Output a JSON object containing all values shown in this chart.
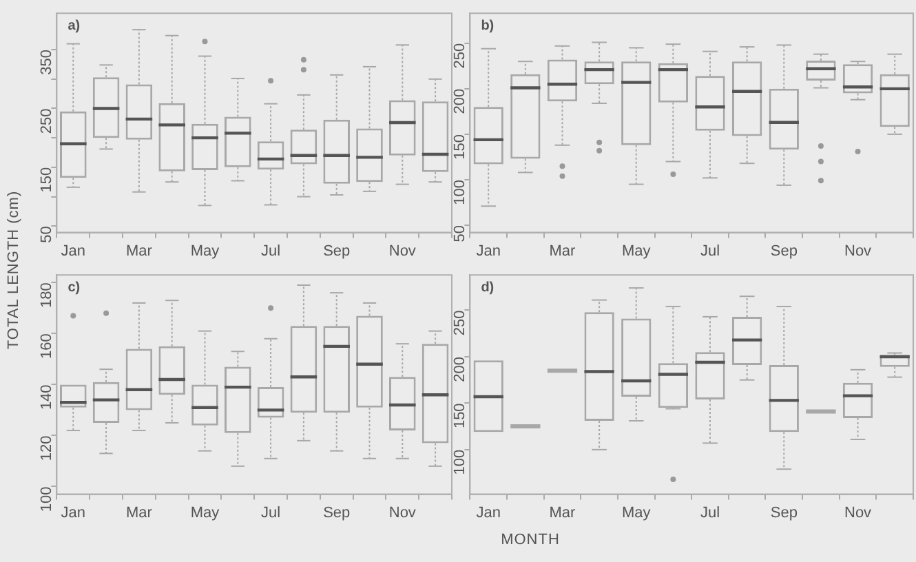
{
  "chart_data": [
    {
      "type": "box",
      "ylabel": "TOTAL LENGTH (cm)",
      "annotations": [
        "a)"
      ],
      "color": "#a8a8a8",
      "categories": [
        "Jan",
        null,
        "Mar",
        null,
        "May",
        null,
        "Jul",
        null,
        "Sep",
        null,
        "Nov",
        null
      ],
      "ylim": [
        39,
        412
      ],
      "yticks": [
        50,
        {
          "value": 100,
          "label": null
        },
        150,
        {
          "value": 200,
          "label": null
        },
        250,
        {
          "value": 300,
          "label": null
        },
        350
      ],
      "boxes": [
        {
          "low": 116,
          "q1": 132,
          "median": 190,
          "q3": 245,
          "high": 360
        },
        {
          "low": 181,
          "q1": 200,
          "median": 250,
          "q3": 303,
          "high": 324
        },
        {
          "low": 108,
          "q1": 197,
          "median": 232,
          "q3": 291,
          "high": 384
        },
        {
          "low": 125,
          "q1": 143,
          "median": 222,
          "q3": 259,
          "high": 374
        },
        {
          "low": 85,
          "q1": 145,
          "median": 200,
          "q3": 224,
          "high": 339,
          "outliers": [
            364
          ]
        },
        {
          "low": 127,
          "q1": 150,
          "median": 208,
          "q3": 236,
          "high": 301
        },
        {
          "low": 86,
          "q1": 146,
          "median": 164,
          "q3": 194,
          "high": 258,
          "outliers": [
            297
          ]
        },
        {
          "low": 100,
          "q1": 155,
          "median": 170,
          "q3": 214,
          "high": 273,
          "outliers": [
            316,
            333
          ]
        },
        {
          "low": 103,
          "q1": 122,
          "median": 170,
          "q3": 231,
          "high": 307
        },
        {
          "low": 109,
          "q1": 125,
          "median": 167,
          "q3": 216,
          "high": 321
        },
        {
          "low": 121,
          "q1": 170,
          "median": 226,
          "q3": 264,
          "high": 358
        },
        {
          "low": 125,
          "q1": 142,
          "median": 172,
          "q3": 262,
          "high": 300
        }
      ]
    },
    {
      "type": "box",
      "annotations": [
        "b)"
      ],
      "color": "#a8a8a8",
      "categories": [
        "Jan",
        null,
        "Mar",
        null,
        "May",
        null,
        "Jul",
        null,
        "Sep",
        null,
        "Nov",
        null
      ],
      "ylim": [
        42,
        283
      ],
      "yticks": [
        50,
        100,
        150,
        200,
        250
      ],
      "boxes": [
        {
          "low": 71,
          "q1": 117,
          "median": 144,
          "q3": 180,
          "high": 244
        },
        {
          "low": 108,
          "q1": 123,
          "median": 201,
          "q3": 216,
          "high": 230
        },
        {
          "low": 138,
          "q1": 186,
          "median": 205,
          "q3": 232,
          "high": 247,
          "outliers": [
            104,
            115
          ]
        },
        {
          "low": 184,
          "q1": 205,
          "median": 221,
          "q3": 230,
          "high": 251,
          "outliers": [
            132,
            141
          ]
        },
        {
          "low": 95,
          "q1": 138,
          "median": 207,
          "q3": 230,
          "high": 245
        },
        {
          "low": 120,
          "q1": 185,
          "median": 221,
          "q3": 228,
          "high": 249,
          "outliers": [
            106
          ]
        },
        {
          "low": 102,
          "q1": 154,
          "median": 180,
          "q3": 214,
          "high": 241
        },
        {
          "low": 118,
          "q1": 148,
          "median": 197,
          "q3": 230,
          "high": 246
        },
        {
          "low": 94,
          "q1": 133,
          "median": 163,
          "q3": 200,
          "high": 248
        },
        {
          "low": 201,
          "q1": 209,
          "median": 222,
          "q3": 231,
          "high": 238,
          "outliers": [
            99,
            120,
            137
          ]
        },
        {
          "low": 188,
          "q1": 195,
          "median": 202,
          "q3": 227,
          "high": 230,
          "outliers": [
            131
          ]
        },
        {
          "low": 150,
          "q1": 158,
          "median": 200,
          "q3": 216,
          "high": 238
        }
      ]
    },
    {
      "type": "box",
      "xlabel": "MONTH",
      "annotations": [
        "c)"
      ],
      "color": "#a8a8a8",
      "categories": [
        "Jan",
        null,
        "Mar",
        null,
        "May",
        null,
        "Jul",
        null,
        "Sep",
        null,
        "Nov",
        null
      ],
      "ylim": [
        97,
        183
      ],
      "yticks": [
        100,
        120,
        140,
        160,
        180
      ],
      "boxes": [
        {
          "low": 122,
          "q1": 131,
          "median": 133,
          "q3": 140,
          "high": 140,
          "outliers": [
            167
          ]
        },
        {
          "low": 113,
          "q1": 125,
          "median": 134,
          "q3": 141,
          "high": 146,
          "outliers": [
            168
          ]
        },
        {
          "low": 122,
          "q1": 130,
          "median": 138,
          "q3": 154,
          "high": 172
        },
        {
          "low": 125,
          "q1": 136,
          "median": 142,
          "q3": 155,
          "high": 173
        },
        {
          "low": 114,
          "q1": 124,
          "median": 131,
          "q3": 140,
          "high": 161
        },
        {
          "low": 108,
          "q1": 121,
          "median": 139,
          "q3": 147,
          "high": 153
        },
        {
          "low": 111,
          "q1": 127,
          "median": 130,
          "q3": 139,
          "high": 158,
          "outliers": [
            170
          ]
        },
        {
          "low": 118,
          "q1": 129,
          "median": 143,
          "q3": 163,
          "high": 179
        },
        {
          "low": 114,
          "q1": 129,
          "median": 155,
          "q3": 163,
          "high": 176
        },
        {
          "low": 111,
          "q1": 131,
          "median": 148,
          "q3": 167,
          "high": 172
        },
        {
          "low": 111,
          "q1": 122,
          "median": 132,
          "q3": 143,
          "high": 156
        },
        {
          "low": 108,
          "q1": 117,
          "median": 136,
          "q3": 156,
          "high": 161
        }
      ]
    },
    {
      "type": "box",
      "annotations": [
        "d)"
      ],
      "color": "#a8a8a8",
      "categories": [
        "Jan",
        null,
        "Mar",
        null,
        "May",
        null,
        "Jul",
        null,
        "Sep",
        null,
        "Nov",
        null
      ],
      "ylim": [
        52,
        288
      ],
      "yticks": [
        100,
        150,
        200,
        250
      ],
      "boxes": [
        {
          "low": 119,
          "q1": 119,
          "median": 157,
          "q3": 196,
          "high": 196
        },
        {
          "low": 125,
          "q1": 125,
          "median": 125,
          "q3": 125,
          "high": 125
        },
        {
          "low": 185,
          "q1": 185,
          "median": 185,
          "q3": 185,
          "high": 185
        },
        {
          "low": 100,
          "q1": 131,
          "median": 184,
          "q3": 248,
          "high": 261
        },
        {
          "low": 131,
          "q1": 157,
          "median": 174,
          "q3": 241,
          "high": 274
        },
        {
          "low": 144,
          "q1": 145,
          "median": 181,
          "q3": 193,
          "high": 254,
          "outliers": [
            68
          ]
        },
        {
          "low": 107,
          "q1": 154,
          "median": 194,
          "q3": 205,
          "high": 243
        },
        {
          "low": 175,
          "q1": 191,
          "median": 218,
          "q3": 243,
          "high": 265
        },
        {
          "low": 79,
          "q1": 119,
          "median": 153,
          "q3": 191,
          "high": 254
        },
        {
          "low": 141,
          "q1": 141,
          "median": 141,
          "q3": 141,
          "high": 141
        },
        {
          "low": 111,
          "q1": 134,
          "median": 158,
          "q3": 172,
          "high": 186
        },
        {
          "low": 178,
          "q1": 189,
          "median": 200,
          "q3": 202,
          "high": 204
        }
      ]
    }
  ]
}
